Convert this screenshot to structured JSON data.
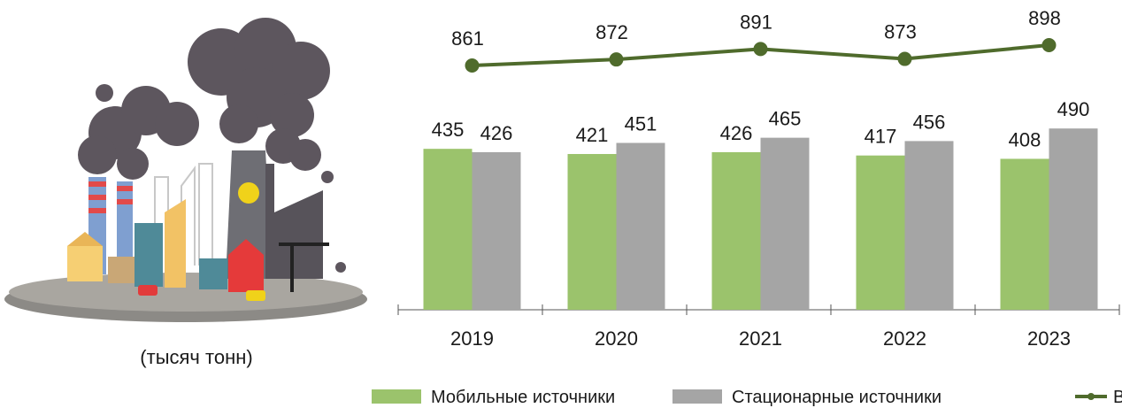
{
  "chart_data": {
    "type": "bar",
    "annotation": "(тысяч тонн)",
    "categories": [
      "2019",
      "2020",
      "2021",
      "2022",
      "2023"
    ],
    "series": [
      {
        "name": "Мобильные источники",
        "color": "#9bc36c",
        "values": [
          435,
          421,
          426,
          417,
          408
        ]
      },
      {
        "name": "Стационарные источники",
        "color": "#a5a5a5",
        "values": [
          426,
          451,
          465,
          456,
          490
        ]
      },
      {
        "name": "Всего",
        "type": "line",
        "color": "#4f6b2c",
        "values": [
          861,
          872,
          891,
          873,
          898
        ]
      }
    ],
    "legend": "bottom"
  }
}
